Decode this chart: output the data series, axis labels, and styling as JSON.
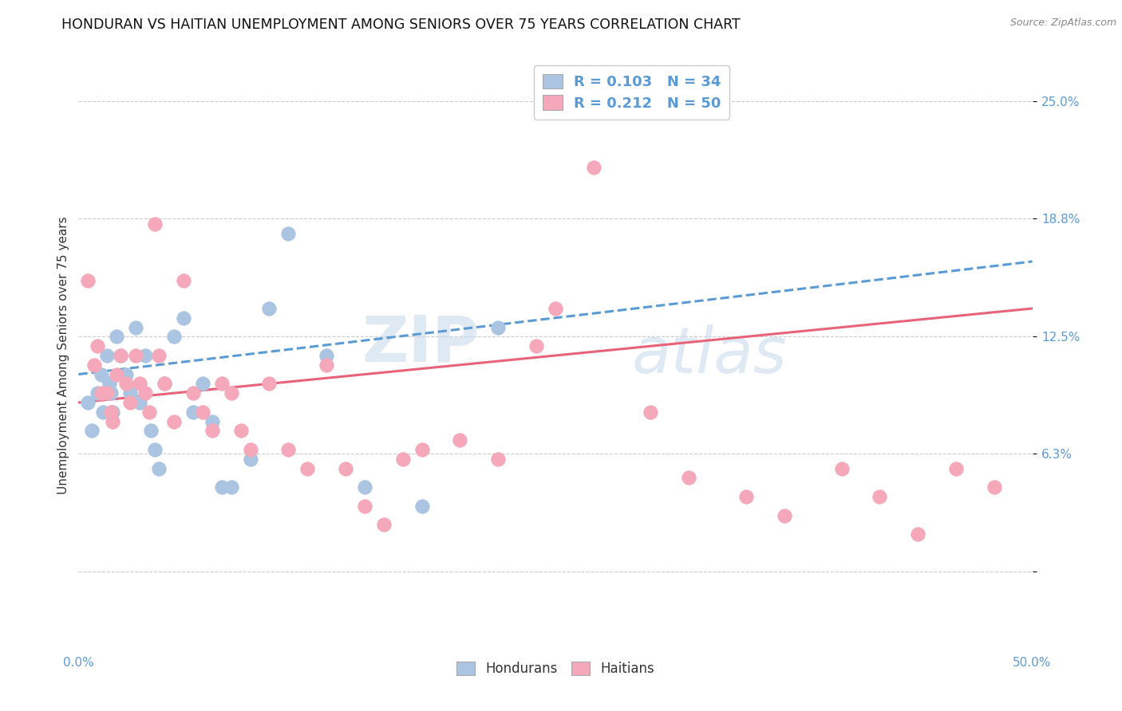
{
  "title": "HONDURAN VS HAITIAN UNEMPLOYMENT AMONG SENIORS OVER 75 YEARS CORRELATION CHART",
  "source": "Source: ZipAtlas.com",
  "ylabel": "Unemployment Among Seniors over 75 years",
  "ytick_vals": [
    0.0,
    0.063,
    0.125,
    0.188,
    0.25
  ],
  "ytick_labels": [
    "",
    "6.3%",
    "12.5%",
    "18.8%",
    "25.0%"
  ],
  "xlim": [
    0.0,
    0.5
  ],
  "ylim": [
    -0.04,
    0.27
  ],
  "honduran_color": "#aac4e2",
  "haitian_color": "#f4a8ba",
  "honduran_line_color": "#5b9bd5",
  "haitian_line_color": "#e8637a",
  "legend_r_honduran": "R = 0.103",
  "legend_n_honduran": "N = 34",
  "legend_r_haitian": "R = 0.212",
  "legend_n_haitian": "N = 50",
  "watermark_zip": "ZIP",
  "watermark_atlas": "atlas",
  "honduran_x": [
    0.005,
    0.007,
    0.01,
    0.012,
    0.013,
    0.015,
    0.016,
    0.017,
    0.018,
    0.02,
    0.022,
    0.025,
    0.027,
    0.03,
    0.032,
    0.035,
    0.038,
    0.04,
    0.042,
    0.045,
    0.05,
    0.055,
    0.06,
    0.065,
    0.07,
    0.075,
    0.08,
    0.09,
    0.1,
    0.11,
    0.13,
    0.15,
    0.18,
    0.22
  ],
  "honduran_y": [
    0.09,
    0.075,
    0.095,
    0.105,
    0.085,
    0.115,
    0.1,
    0.095,
    0.085,
    0.125,
    0.115,
    0.105,
    0.095,
    0.13,
    0.09,
    0.115,
    0.075,
    0.065,
    0.055,
    0.1,
    0.125,
    0.135,
    0.085,
    0.1,
    0.08,
    0.045,
    0.045,
    0.06,
    0.14,
    0.18,
    0.115,
    0.045,
    0.035,
    0.13
  ],
  "haitian_x": [
    0.005,
    0.008,
    0.01,
    0.012,
    0.015,
    0.017,
    0.018,
    0.02,
    0.022,
    0.025,
    0.027,
    0.03,
    0.032,
    0.035,
    0.037,
    0.04,
    0.042,
    0.045,
    0.05,
    0.055,
    0.06,
    0.065,
    0.07,
    0.075,
    0.08,
    0.085,
    0.09,
    0.1,
    0.11,
    0.12,
    0.13,
    0.14,
    0.15,
    0.16,
    0.17,
    0.18,
    0.2,
    0.22,
    0.24,
    0.25,
    0.27,
    0.3,
    0.32,
    0.35,
    0.37,
    0.4,
    0.42,
    0.44,
    0.46,
    0.48
  ],
  "haitian_y": [
    0.155,
    0.11,
    0.12,
    0.095,
    0.095,
    0.085,
    0.08,
    0.105,
    0.115,
    0.1,
    0.09,
    0.115,
    0.1,
    0.095,
    0.085,
    0.185,
    0.115,
    0.1,
    0.08,
    0.155,
    0.095,
    0.085,
    0.075,
    0.1,
    0.095,
    0.075,
    0.065,
    0.1,
    0.065,
    0.055,
    0.11,
    0.055,
    0.035,
    0.025,
    0.06,
    0.065,
    0.07,
    0.06,
    0.12,
    0.14,
    0.215,
    0.085,
    0.05,
    0.04,
    0.03,
    0.055,
    0.04,
    0.02,
    0.055,
    0.045
  ],
  "honduran_trendline_x0": 0.0,
  "honduran_trendline_y0": 0.105,
  "honduran_trendline_x1": 0.5,
  "honduran_trendline_y1": 0.165,
  "haitian_trendline_x0": 0.0,
  "haitian_trendline_y0": 0.09,
  "haitian_trendline_x1": 0.5,
  "haitian_trendline_y1": 0.14
}
